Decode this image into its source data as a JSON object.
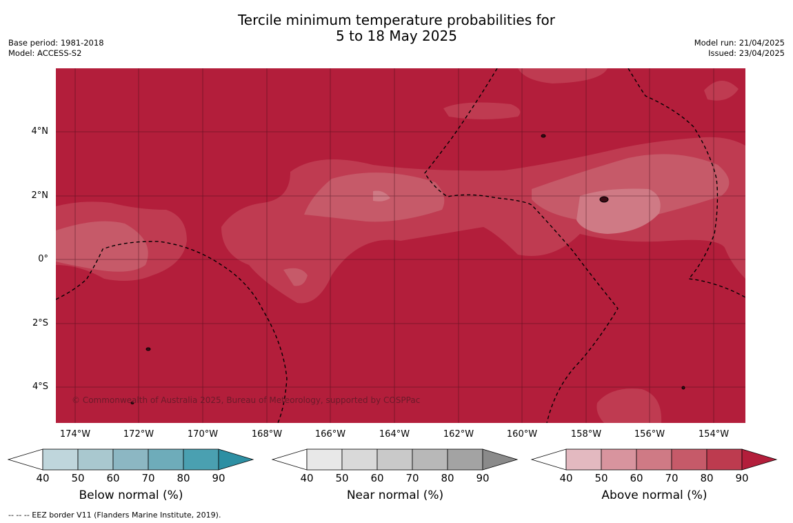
{
  "header": {
    "title_line1": "Tercile minimum temperature probabilities for",
    "title_line2": "5 to 18 May 2025",
    "base_period": "Base period: 1981-2018",
    "model": "Model: ACCESS-S2",
    "model_run": "Model run: 21/04/2025",
    "issued": "Issued: 23/04/2025"
  },
  "map": {
    "lat_labels": [
      "4°N",
      "2°N",
      "0°",
      "2°S",
      "4°S"
    ],
    "lon_labels": [
      "174°W",
      "172°W",
      "170°W",
      "168°W",
      "166°W",
      "164°W",
      "162°W",
      "160°W",
      "158°W",
      "156°W",
      "154°W"
    ],
    "copyright": "© Commonwealth of Australia 2025, Bureau of Meteorology, supported by COSPPac",
    "colors": {
      "above_90": "#b31e3b",
      "above_80": "#bf3b51",
      "above_70": "#c65a69",
      "above_60": "#cf7a85"
    }
  },
  "colorbars": [
    {
      "title": "Below normal (%)",
      "ticks": [
        "40",
        "50",
        "60",
        "70",
        "80",
        "90"
      ],
      "colors": [
        "#bfd6dc",
        "#a9c8cf",
        "#8cb7c3",
        "#6eacba",
        "#4aa0b1",
        "#2d8fa3"
      ]
    },
    {
      "title": "Near normal (%)",
      "ticks": [
        "40",
        "50",
        "60",
        "70",
        "80",
        "90"
      ],
      "colors": [
        "#e8e8e8",
        "#d9d9d9",
        "#c9c9c9",
        "#b8b8b8",
        "#a3a3a3",
        "#8a8a8a"
      ]
    },
    {
      "title": "Above normal (%)",
      "ticks": [
        "40",
        "50",
        "60",
        "70",
        "80",
        "90"
      ],
      "colors": [
        "#e3b9c0",
        "#d8949e",
        "#cf7a85",
        "#c65a69",
        "#bd3b4f",
        "#b31e3b"
      ]
    }
  ],
  "legend": {
    "eez_label": "--  --  -- EEZ border V11 (Flanders Marine Institute, 2019)."
  }
}
